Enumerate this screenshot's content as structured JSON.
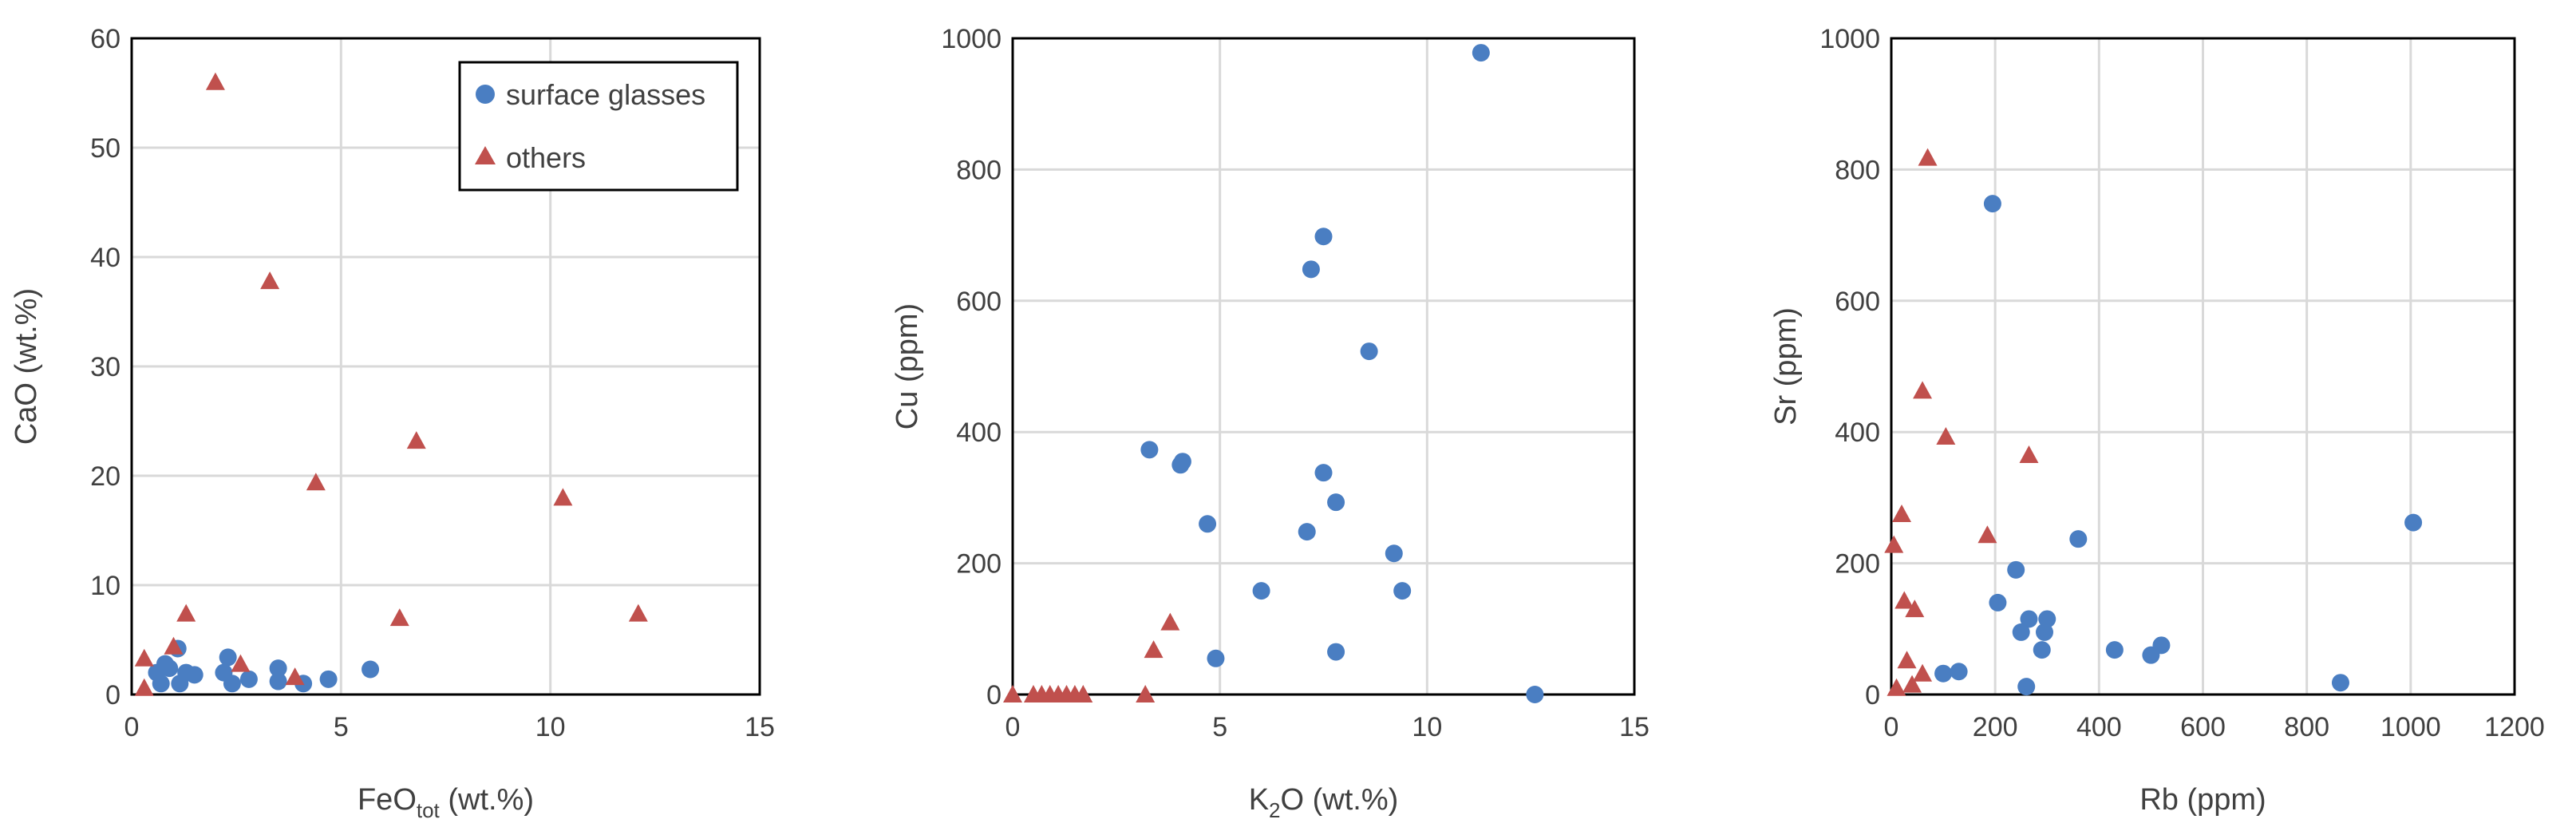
{
  "colors": {
    "surface": "#4A7EC2",
    "others": "#C0504D",
    "grid": "#d9d9d9",
    "text": "#404040"
  },
  "legend": {
    "surface_label": "surface glasses",
    "others_label": "others",
    "placement": "top-right"
  },
  "chart_data": [
    {
      "type": "scatter",
      "xlabel": "FeO",
      "xlabel_sub": "tot",
      "xlabel_suffix": " (wt.%)",
      "ylabel": "CaO (wt.%)",
      "xlim": [
        0,
        15
      ],
      "ylim": [
        0,
        60
      ],
      "xticks": [
        0,
        5,
        10,
        15
      ],
      "yticks": [
        0,
        10,
        20,
        30,
        40,
        50,
        60
      ],
      "grid": true,
      "series": [
        {
          "name": "surface glasses",
          "marker": "circle",
          "points": [
            [
              0.6,
              2.0
            ],
            [
              0.7,
              1.0
            ],
            [
              0.8,
              2.8
            ],
            [
              0.9,
              2.4
            ],
            [
              1.1,
              4.2
            ],
            [
              1.15,
              1.0
            ],
            [
              1.3,
              2.0
            ],
            [
              1.5,
              1.8
            ],
            [
              2.2,
              2.0
            ],
            [
              2.3,
              3.4
            ],
            [
              2.4,
              1.0
            ],
            [
              2.8,
              1.4
            ],
            [
              3.5,
              2.4
            ],
            [
              3.5,
              1.2
            ],
            [
              4.1,
              1.0
            ],
            [
              4.7,
              1.4
            ],
            [
              5.7,
              2.3
            ]
          ]
        },
        {
          "name": "others",
          "marker": "triangle",
          "points": [
            [
              2.0,
              56.0
            ],
            [
              3.3,
              37.8
            ],
            [
              6.8,
              23.2
            ],
            [
              4.4,
              19.4
            ],
            [
              10.3,
              18.0
            ],
            [
              1.3,
              7.4
            ],
            [
              12.1,
              7.4
            ],
            [
              6.4,
              7.0
            ],
            [
              1.0,
              4.4
            ],
            [
              0.3,
              3.3
            ],
            [
              2.6,
              2.8
            ],
            [
              3.9,
              1.6
            ],
            [
              0.3,
              0.6
            ]
          ]
        }
      ]
    },
    {
      "type": "scatter",
      "xlabel": "K",
      "xlabel_sub": "2",
      "xlabel_suffix": "O (wt.%)",
      "ylabel": "Cu (ppm)",
      "xlim": [
        0,
        15
      ],
      "ylim": [
        0,
        1000
      ],
      "xticks": [
        0,
        5,
        10,
        15
      ],
      "yticks": [
        0,
        200,
        400,
        600,
        800,
        1000
      ],
      "grid": true,
      "series": [
        {
          "name": "surface glasses",
          "marker": "circle",
          "points": [
            [
              11.3,
              978
            ],
            [
              7.5,
              698
            ],
            [
              7.2,
              648
            ],
            [
              8.6,
              523
            ],
            [
              3.3,
              373
            ],
            [
              4.1,
              355
            ],
            [
              4.05,
              350
            ],
            [
              7.5,
              338
            ],
            [
              7.8,
              293
            ],
            [
              4.7,
              260
            ],
            [
              7.1,
              248
            ],
            [
              9.2,
              215
            ],
            [
              6.0,
              158
            ],
            [
              9.4,
              158
            ],
            [
              4.9,
              55
            ],
            [
              7.8,
              65
            ],
            [
              12.6,
              0
            ]
          ]
        },
        {
          "name": "others",
          "marker": "triangle",
          "points": [
            [
              3.8,
              110
            ],
            [
              3.4,
              68
            ],
            [
              0.0,
              0
            ],
            [
              0.5,
              0
            ],
            [
              0.7,
              0
            ],
            [
              0.9,
              0
            ],
            [
              1.1,
              0
            ],
            [
              1.3,
              0
            ],
            [
              1.5,
              0
            ],
            [
              1.7,
              0
            ],
            [
              3.2,
              0
            ]
          ]
        }
      ]
    },
    {
      "type": "scatter",
      "xlabel": "Rb (ppm)",
      "xlabel_sub": "",
      "xlabel_suffix": "",
      "ylabel": "Sr (ppm)",
      "xlim": [
        0,
        1200
      ],
      "ylim": [
        0,
        1000
      ],
      "xticks": [
        0,
        200,
        400,
        600,
        800,
        1000,
        1200
      ],
      "yticks": [
        0,
        200,
        400,
        600,
        800,
        1000
      ],
      "grid": true,
      "series": [
        {
          "name": "surface glasses",
          "marker": "circle",
          "points": [
            [
              195,
              748
            ],
            [
              1005,
              262
            ],
            [
              360,
              237
            ],
            [
              240,
              190
            ],
            [
              205,
              140
            ],
            [
              265,
              115
            ],
            [
              300,
              115
            ],
            [
              250,
              95
            ],
            [
              295,
              95
            ],
            [
              290,
              68
            ],
            [
              430,
              68
            ],
            [
              520,
              75
            ],
            [
              500,
              60
            ],
            [
              100,
              32
            ],
            [
              130,
              35
            ],
            [
              260,
              12
            ],
            [
              865,
              18
            ]
          ]
        },
        {
          "name": "others",
          "marker": "triangle",
          "points": [
            [
              70,
              818
            ],
            [
              60,
              463
            ],
            [
              105,
              393
            ],
            [
              265,
              365
            ],
            [
              20,
              275
            ],
            [
              185,
              243
            ],
            [
              5,
              228
            ],
            [
              25,
              143
            ],
            [
              45,
              130
            ],
            [
              30,
              52
            ],
            [
              60,
              32
            ],
            [
              40,
              15
            ],
            [
              10,
              10
            ]
          ]
        }
      ]
    }
  ]
}
